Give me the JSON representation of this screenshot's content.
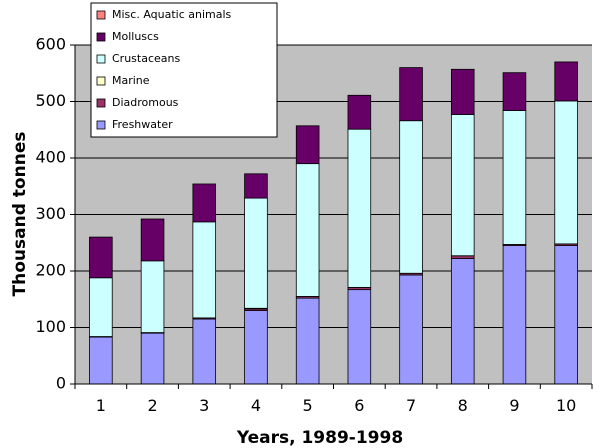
{
  "chart_data": {
    "type": "bar",
    "stacked": true,
    "title": "",
    "xlabel": "Years, 1989-1998",
    "ylabel": "Thousand tonnes",
    "categories": [
      "1",
      "2",
      "3",
      "4",
      "5",
      "6",
      "7",
      "8",
      "9",
      "10"
    ],
    "ylim": [
      0,
      600
    ],
    "yticks": [
      0,
      100,
      200,
      300,
      400,
      500,
      600
    ],
    "grid": true,
    "legend_position": "top-left",
    "series": [
      {
        "name": "Freshwater",
        "color": "#9999ff",
        "values": [
          83,
          90,
          115,
          130,
          152,
          167,
          193,
          222,
          245,
          245
        ]
      },
      {
        "name": "Diadromous",
        "color": "#993366",
        "values": [
          1,
          1,
          2,
          3,
          3,
          4,
          3,
          5,
          2,
          3
        ]
      },
      {
        "name": "Marine",
        "color": "#ffffcc",
        "values": [
          0,
          0,
          0,
          1,
          0,
          0,
          0,
          0,
          0,
          0
        ]
      },
      {
        "name": "Crustaceans",
        "color": "#ccffff",
        "values": [
          104,
          127,
          170,
          195,
          235,
          280,
          270,
          250,
          237,
          253
        ]
      },
      {
        "name": "Molluscs",
        "color": "#660066",
        "values": [
          72,
          74,
          67,
          43,
          67,
          60,
          94,
          80,
          67,
          69
        ]
      },
      {
        "name": "Misc. Aquatic animals",
        "color": "#ff8080",
        "values": [
          0,
          0,
          0,
          0,
          0,
          0,
          0,
          0,
          0,
          0
        ]
      }
    ],
    "colors": {
      "plot_background": "#c0c0c0",
      "bar_outline": "#000000",
      "grid": "#000000"
    }
  }
}
